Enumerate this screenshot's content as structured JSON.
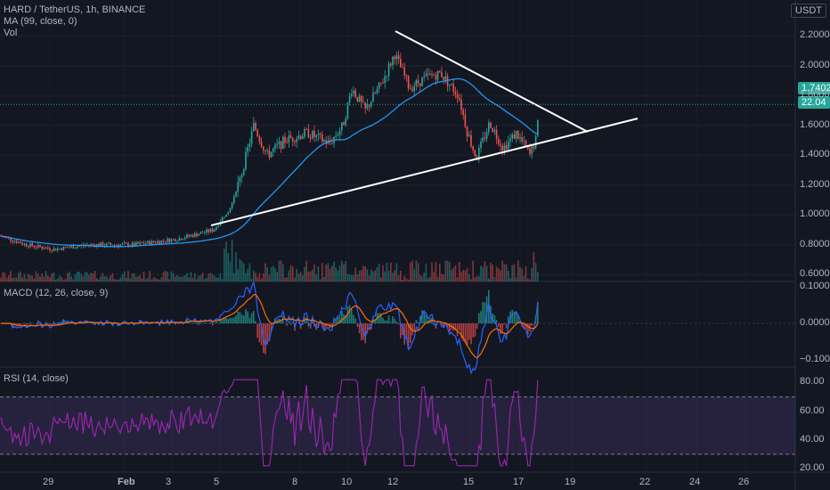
{
  "header": {
    "title": "HARD / TetherUS, 1h, BINANCE",
    "ma_label": "MA (99, close, 0)",
    "vol_label": "Vol",
    "currency": "USDT"
  },
  "price_badges": {
    "last_price": "1.7402",
    "volume": "22.04"
  },
  "macd_label": "MACD (12, 26, close, 9)",
  "rsi_label": "RSI (14, close)",
  "price_ticks": [
    "2.2000",
    "2.0000",
    "1.8000",
    "1.6000",
    "1.4000",
    "1.2000",
    "1.0000",
    "0.8000",
    "0.6000"
  ],
  "macd_ticks": [
    "0.1000",
    "0.0000",
    "−0.1000"
  ],
  "rsi_ticks": [
    "80.00",
    "60.00",
    "40.00",
    "20.00"
  ],
  "date_ticks": [
    "29",
    "Feb",
    "3",
    "5",
    "8",
    "10",
    "12",
    "15",
    "17",
    "19",
    "22",
    "24",
    "26"
  ],
  "colors": {
    "background": "#131722",
    "up": "#26a69a",
    "down": "#ef5350",
    "ma": "#2196f3",
    "macd": "#2962ff",
    "signal": "#ff6d00",
    "rsi": "#9c27b0",
    "trendline": "#ffffff",
    "last_price_badge": "#26a69a"
  },
  "chart_data": [
    {
      "type": "candlestick",
      "title": "HARD / TetherUS, 1h, BINANCE",
      "price_range": [
        0.5,
        2.25
      ],
      "key_points": {
        "start_price": 0.86,
        "low_area": 0.78,
        "breakout_date": "Feb 5",
        "peak": 2.12,
        "peak_date": "Feb 12",
        "last": 1.7402
      },
      "ma_series": "MA 99",
      "trendlines": [
        {
          "name": "resistance",
          "from_price": 2.13,
          "to_price": 1.45
        },
        {
          "name": "support",
          "from_price": 0.83,
          "to_price": 1.55
        }
      ]
    },
    {
      "type": "bar",
      "title": "Vol",
      "last_volume": 22.04
    },
    {
      "type": "line",
      "title": "MACD (12, 26, close, 9)",
      "ylim": [
        -0.11,
        0.11
      ]
    },
    {
      "type": "line",
      "title": "RSI (14, close)",
      "ylim": [
        20,
        85
      ],
      "bands": [
        30,
        70
      ]
    }
  ]
}
